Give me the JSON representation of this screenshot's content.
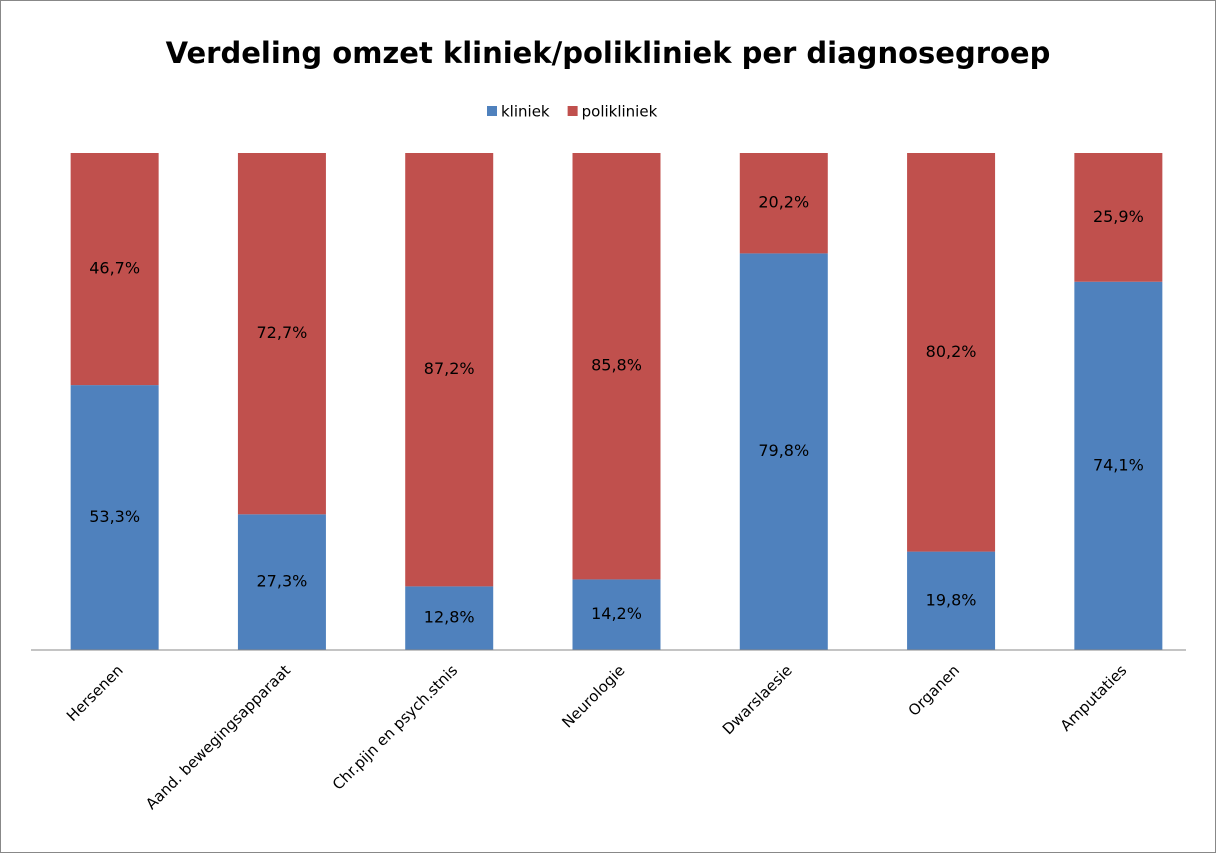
{
  "chart_data": {
    "type": "stacked_bar_100",
    "title": "Verdeling omzet kliniek/polikliniek per diagnosegroep",
    "categories": [
      "Hersenen",
      "Aand. bewegingsapparaat",
      "Chr.pijn en psych.stnis",
      "Neurologie",
      "Dwarslaesie",
      "Organen",
      "Amputaties"
    ],
    "series": [
      {
        "name": "kliniek",
        "color": "#4f81bd",
        "values": [
          53.3,
          27.3,
          12.8,
          14.2,
          79.8,
          19.8,
          74.1
        ],
        "value_labels": [
          "53,3%",
          "27,3%",
          "12,8%",
          "14,2%",
          "79,8%",
          "19,8%",
          "74,1%"
        ]
      },
      {
        "name": "polikliniek",
        "color": "#c0504d",
        "values": [
          46.7,
          72.7,
          87.2,
          85.8,
          20.2,
          80.2,
          25.9
        ],
        "value_labels": [
          "46,7%",
          "72,7%",
          "87,2%",
          "85,8%",
          "20,2%",
          "80,2%",
          "25,9%"
        ]
      }
    ],
    "legend": "top"
  }
}
